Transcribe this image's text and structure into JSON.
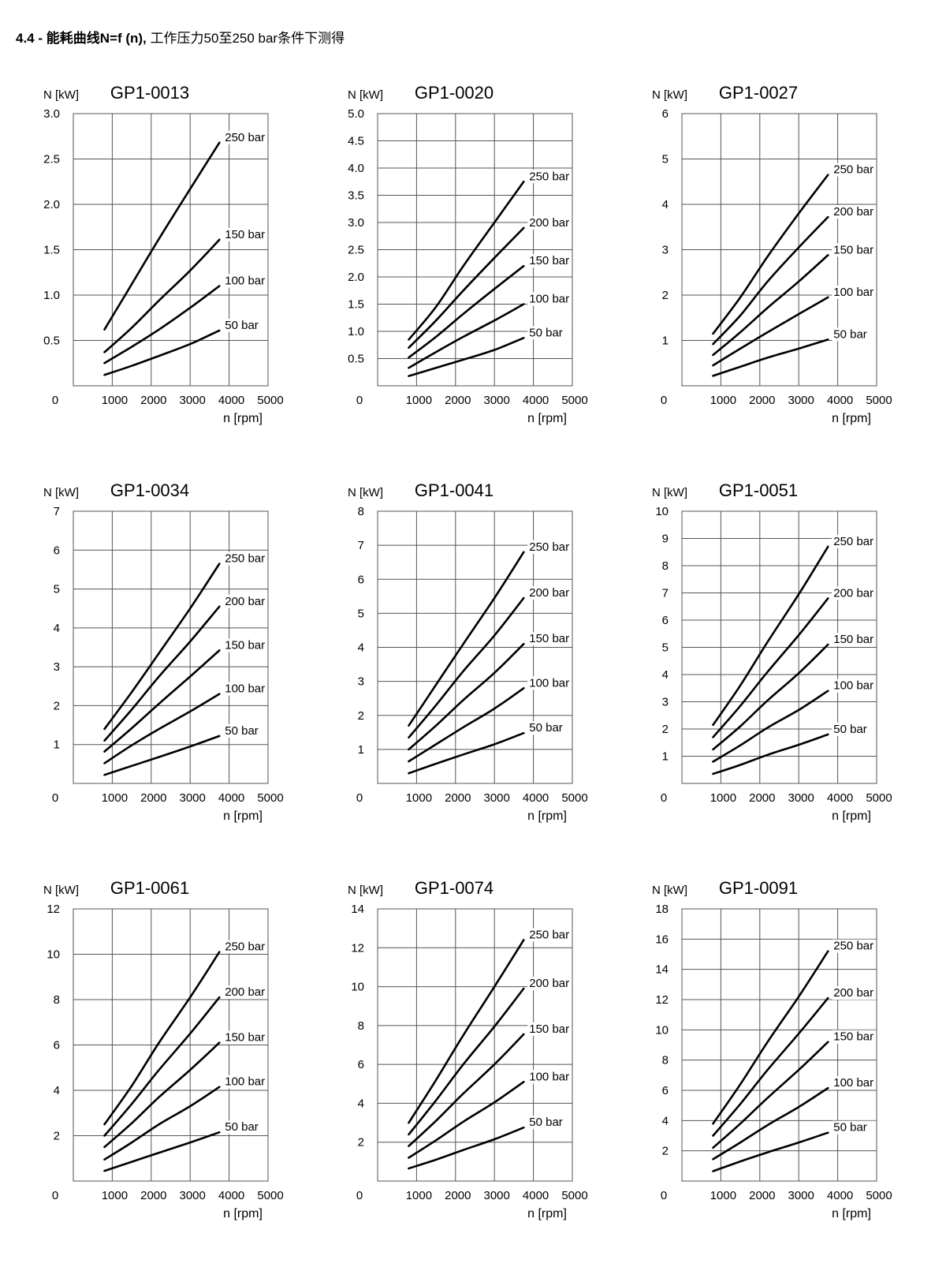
{
  "heading": {
    "number": "4.4 -",
    "bold_text": "能耗曲线N=f (n),",
    "normal_text": "工作压力50至250 bar条件下测得"
  },
  "chart_data": [
    {
      "type": "line",
      "title": "GP1-0013",
      "ylabel": "N [kW]",
      "xlabel": "n [rpm]",
      "xlim": [
        0,
        5000
      ],
      "ylim": [
        0,
        3.0
      ],
      "xticks": [
        "0",
        "1000",
        "2000",
        "3000",
        "4000",
        "5000"
      ],
      "yticks": [
        "0.5",
        "1.0",
        "1.5",
        "2.0",
        "2.5",
        "3.0"
      ],
      "ytick_values": [
        0.5,
        1.0,
        1.5,
        2.0,
        2.5,
        3.0
      ],
      "grid": true,
      "x": [
        800,
        1500,
        2200,
        3000,
        3750
      ],
      "series": [
        {
          "name": "250 bar",
          "values": [
            0.62,
            1.12,
            1.62,
            2.17,
            2.68
          ]
        },
        {
          "name": "150 bar",
          "values": [
            0.37,
            0.64,
            0.94,
            1.27,
            1.61
          ]
        },
        {
          "name": "100 bar",
          "values": [
            0.25,
            0.43,
            0.62,
            0.86,
            1.1
          ]
        },
        {
          "name": "50 bar",
          "values": [
            0.12,
            0.22,
            0.33,
            0.46,
            0.61
          ]
        }
      ]
    },
    {
      "type": "line",
      "title": "GP1-0020",
      "ylabel": "N [kW]",
      "xlabel": "n [rpm]",
      "xlim": [
        0,
        5000
      ],
      "ylim": [
        0,
        5.0
      ],
      "xticks": [
        "0",
        "1000",
        "2000",
        "3000",
        "4000",
        "5000"
      ],
      "yticks": [
        "0.5",
        "1.0",
        "1.5",
        "2.0",
        "2.5",
        "3.0",
        "3.5",
        "4.0",
        "4.5",
        "5.0"
      ],
      "ytick_values": [
        0.5,
        1.0,
        1.5,
        2.0,
        2.5,
        3.0,
        3.5,
        4.0,
        4.5,
        5.0
      ],
      "grid": true,
      "x": [
        800,
        1500,
        2200,
        3000,
        3750
      ],
      "series": [
        {
          "name": "250 bar",
          "values": [
            0.85,
            1.45,
            2.2,
            3.0,
            3.75
          ]
        },
        {
          "name": "200 bar",
          "values": [
            0.7,
            1.2,
            1.75,
            2.35,
            2.9
          ]
        },
        {
          "name": "150 bar",
          "values": [
            0.52,
            0.9,
            1.32,
            1.78,
            2.2
          ]
        },
        {
          "name": "100 bar",
          "values": [
            0.33,
            0.62,
            0.9,
            1.2,
            1.5
          ]
        },
        {
          "name": "50 bar",
          "values": [
            0.18,
            0.33,
            0.48,
            0.66,
            0.88
          ]
        }
      ]
    },
    {
      "type": "line",
      "title": "GP1-0027",
      "ylabel": "N [kW]",
      "xlabel": "n [rpm]",
      "xlim": [
        0,
        5000
      ],
      "ylim": [
        0,
        6
      ],
      "xticks": [
        "0",
        "1000",
        "2000",
        "3000",
        "4000",
        "5000"
      ],
      "yticks": [
        "1",
        "2",
        "3",
        "4",
        "5",
        "6"
      ],
      "ytick_values": [
        1,
        2,
        3,
        4,
        5,
        6
      ],
      "grid": true,
      "x": [
        800,
        1500,
        2200,
        3000,
        3750
      ],
      "series": [
        {
          "name": "250 bar",
          "values": [
            1.15,
            1.95,
            2.85,
            3.8,
            4.65
          ]
        },
        {
          "name": "200 bar",
          "values": [
            0.92,
            1.55,
            2.3,
            3.05,
            3.72
          ]
        },
        {
          "name": "150 bar",
          "values": [
            0.68,
            1.18,
            1.72,
            2.3,
            2.88
          ]
        },
        {
          "name": "100 bar",
          "values": [
            0.45,
            0.82,
            1.18,
            1.58,
            1.95
          ]
        },
        {
          "name": "50 bar",
          "values": [
            0.22,
            0.42,
            0.62,
            0.82,
            1.02
          ]
        }
      ]
    },
    {
      "type": "line",
      "title": "GP1-0034",
      "ylabel": "N [kW]",
      "xlabel": "n [rpm]",
      "xlim": [
        0,
        5000
      ],
      "ylim": [
        0,
        7
      ],
      "xticks": [
        "0",
        "1000",
        "2000",
        "3000",
        "4000",
        "5000"
      ],
      "yticks": [
        "1",
        "2",
        "3",
        "4",
        "5",
        "6",
        "7"
      ],
      "ytick_values": [
        1,
        2,
        3,
        4,
        5,
        6,
        7
      ],
      "grid": true,
      "x": [
        800,
        1500,
        2200,
        3000,
        3750
      ],
      "series": [
        {
          "name": "250 bar",
          "values": [
            1.4,
            2.35,
            3.35,
            4.5,
            5.65
          ]
        },
        {
          "name": "200 bar",
          "values": [
            1.1,
            1.9,
            2.75,
            3.65,
            4.55
          ]
        },
        {
          "name": "150 bar",
          "values": [
            0.82,
            1.42,
            2.05,
            2.75,
            3.42
          ]
        },
        {
          "name": "100 bar",
          "values": [
            0.52,
            0.98,
            1.4,
            1.85,
            2.3
          ]
        },
        {
          "name": "50 bar",
          "values": [
            0.22,
            0.45,
            0.68,
            0.95,
            1.22
          ]
        }
      ]
    },
    {
      "type": "line",
      "title": "GP1-0041",
      "ylabel": "N [kW]",
      "xlabel": "n [rpm]",
      "xlim": [
        0,
        5000
      ],
      "ylim": [
        0,
        8
      ],
      "xticks": [
        "0",
        "1000",
        "2000",
        "3000",
        "4000",
        "5000"
      ],
      "yticks": [
        "1",
        "2",
        "3",
        "4",
        "5",
        "6",
        "7",
        "8"
      ],
      "ytick_values": [
        1,
        2,
        3,
        4,
        5,
        6,
        7,
        8
      ],
      "grid": true,
      "x": [
        800,
        1500,
        2200,
        3000,
        3750
      ],
      "series": [
        {
          "name": "250 bar",
          "values": [
            1.7,
            2.9,
            4.1,
            5.45,
            6.8
          ]
        },
        {
          "name": "200 bar",
          "values": [
            1.35,
            2.3,
            3.3,
            4.35,
            5.45
          ]
        },
        {
          "name": "150 bar",
          "values": [
            1.0,
            1.7,
            2.45,
            3.25,
            4.1
          ]
        },
        {
          "name": "100 bar",
          "values": [
            0.65,
            1.15,
            1.65,
            2.2,
            2.8
          ]
        },
        {
          "name": "50 bar",
          "values": [
            0.3,
            0.58,
            0.85,
            1.15,
            1.48
          ]
        }
      ]
    },
    {
      "type": "line",
      "title": "GP1-0051",
      "ylabel": "N [kW]",
      "xlabel": "n [rpm]",
      "xlim": [
        0,
        5000
      ],
      "ylim": [
        0,
        10
      ],
      "xticks": [
        "0",
        "1000",
        "2000",
        "3000",
        "4000",
        "5000"
      ],
      "yticks": [
        "1",
        "2",
        "3",
        "4",
        "5",
        "6",
        "7",
        "8",
        "9",
        "10"
      ],
      "ytick_values": [
        1,
        2,
        3,
        4,
        5,
        6,
        7,
        8,
        9,
        10
      ],
      "grid": true,
      "x": [
        800,
        1500,
        2200,
        3000,
        3750
      ],
      "series": [
        {
          "name": "250 bar",
          "values": [
            2.15,
            3.6,
            5.2,
            6.95,
            8.7
          ]
        },
        {
          "name": "200 bar",
          "values": [
            1.7,
            2.85,
            4.1,
            5.45,
            6.8
          ]
        },
        {
          "name": "150 bar",
          "values": [
            1.25,
            2.1,
            3.05,
            4.05,
            5.1
          ]
        },
        {
          "name": "100 bar",
          "values": [
            0.8,
            1.4,
            2.05,
            2.7,
            3.4
          ]
        },
        {
          "name": "50 bar",
          "values": [
            0.35,
            0.68,
            1.05,
            1.42,
            1.8
          ]
        }
      ]
    },
    {
      "type": "line",
      "title": "GP1-0061",
      "ylabel": "N [kW]",
      "xlabel": "n [rpm]",
      "xlim": [
        0,
        5000
      ],
      "ylim": [
        0,
        12
      ],
      "xticks": [
        "0",
        "1000",
        "2000",
        "3000",
        "4000",
        "5000"
      ],
      "yticks": [
        "2",
        "4",
        "6",
        "8",
        "10",
        "12"
      ],
      "ytick_values": [
        2,
        4,
        6,
        8,
        10,
        12
      ],
      "grid": true,
      "x": [
        800,
        1500,
        2200,
        3000,
        3750
      ],
      "series": [
        {
          "name": "250 bar",
          "values": [
            2.5,
            4.2,
            6.1,
            8.1,
            10.1
          ]
        },
        {
          "name": "200 bar",
          "values": [
            2.0,
            3.4,
            4.9,
            6.5,
            8.1
          ]
        },
        {
          "name": "150 bar",
          "values": [
            1.5,
            2.55,
            3.7,
            4.9,
            6.1
          ]
        },
        {
          "name": "100 bar",
          "values": [
            0.95,
            1.7,
            2.5,
            3.3,
            4.15
          ]
        },
        {
          "name": "50 bar",
          "values": [
            0.45,
            0.85,
            1.25,
            1.7,
            2.15
          ]
        }
      ]
    },
    {
      "type": "line",
      "title": "GP1-0074",
      "ylabel": "N [kW]",
      "xlabel": "n [rpm]",
      "xlim": [
        0,
        5000
      ],
      "ylim": [
        0,
        14
      ],
      "xticks": [
        "0",
        "1000",
        "2000",
        "3000",
        "4000",
        "5000"
      ],
      "yticks": [
        "2",
        "4",
        "6",
        "8",
        "10",
        "12",
        "14"
      ],
      "ytick_values": [
        2,
        4,
        6,
        8,
        10,
        12,
        14
      ],
      "grid": true,
      "x": [
        800,
        1500,
        2200,
        3000,
        3750
      ],
      "series": [
        {
          "name": "250 bar",
          "values": [
            3.0,
            5.2,
            7.5,
            10.0,
            12.4
          ]
        },
        {
          "name": "200 bar",
          "values": [
            2.4,
            4.15,
            6.0,
            7.95,
            9.9
          ]
        },
        {
          "name": "150 bar",
          "values": [
            1.8,
            3.1,
            4.5,
            6.0,
            7.55
          ]
        },
        {
          "name": "100 bar",
          "values": [
            1.2,
            2.1,
            3.05,
            4.05,
            5.1
          ]
        },
        {
          "name": "50 bar",
          "values": [
            0.65,
            1.1,
            1.6,
            2.15,
            2.75
          ]
        }
      ]
    },
    {
      "type": "line",
      "title": "GP1-0091",
      "ylabel": "N [kW]",
      "xlabel": "n [rpm]",
      "xlim": [
        0,
        5000
      ],
      "ylim": [
        0,
        18
      ],
      "xticks": [
        "0",
        "1000",
        "2000",
        "3000",
        "4000",
        "5000"
      ],
      "yticks": [
        "2",
        "4",
        "6",
        "8",
        "10",
        "12",
        "14",
        "16",
        "18"
      ],
      "ytick_values": [
        2,
        4,
        6,
        8,
        10,
        12,
        14,
        16,
        18
      ],
      "grid": true,
      "x": [
        800,
        1500,
        2200,
        3000,
        3750
      ],
      "series": [
        {
          "name": "250 bar",
          "values": [
            3.8,
            6.4,
            9.2,
            12.2,
            15.2
          ]
        },
        {
          "name": "200 bar",
          "values": [
            3.0,
            5.1,
            7.35,
            9.75,
            12.1
          ]
        },
        {
          "name": "150 bar",
          "values": [
            2.2,
            3.8,
            5.5,
            7.35,
            9.2
          ]
        },
        {
          "name": "100 bar",
          "values": [
            1.45,
            2.55,
            3.7,
            4.9,
            6.15
          ]
        },
        {
          "name": "50 bar",
          "values": [
            0.65,
            1.3,
            1.9,
            2.55,
            3.2
          ]
        }
      ]
    }
  ]
}
